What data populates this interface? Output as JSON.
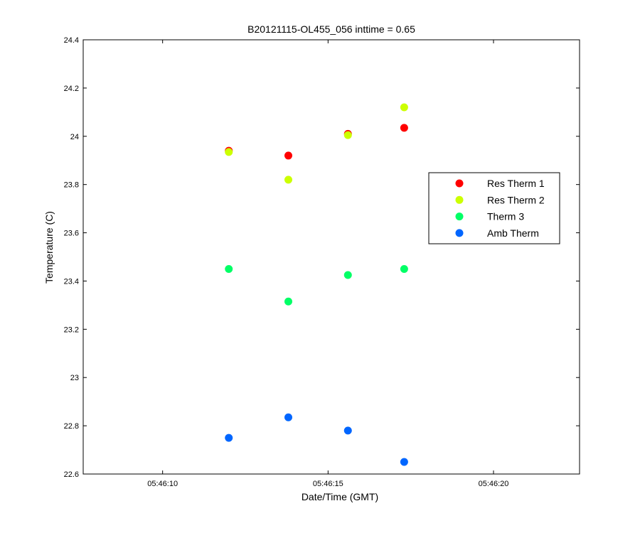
{
  "chart_data": {
    "type": "scatter",
    "title": "B20121115-OL455_056 inttime = 0.65",
    "xlabel": "Date/Time (GMT)",
    "ylabel": "Temperature (C)",
    "xlim": [
      "05:46:07.6",
      "05:46:22.6"
    ],
    "ylim": [
      22.6,
      24.4
    ],
    "x_ticks": [
      "05:46:10",
      "05:46:15",
      "05:46:20"
    ],
    "y_ticks": [
      22.6,
      22.8,
      23,
      23.2,
      23.4,
      23.6,
      23.8,
      24,
      24.2,
      24.4
    ],
    "y_tick_labels": [
      "22.6",
      "22.8",
      "23",
      "23.2",
      "23.4",
      "23.6",
      "23.8",
      "24",
      "24.2",
      "24.4"
    ],
    "grid": false,
    "legend_position": "right",
    "x": [
      "05:46:12.0",
      "05:46:13.8",
      "05:46:15.6",
      "05:46:17.3"
    ],
    "series": [
      {
        "name": "Res Therm 1",
        "color": "#ff0000",
        "values": [
          23.94,
          23.92,
          24.01,
          24.035
        ]
      },
      {
        "name": "Res Therm 2",
        "color": "#ccff00",
        "values": [
          23.935,
          23.82,
          24.005,
          24.12
        ]
      },
      {
        "name": "Therm 3",
        "color": "#00ff66",
        "values": [
          23.45,
          23.315,
          23.425,
          23.45
        ]
      },
      {
        "name": "Amb Therm",
        "color": "#0066ff",
        "values": [
          22.75,
          22.835,
          22.78,
          22.65
        ]
      }
    ]
  }
}
